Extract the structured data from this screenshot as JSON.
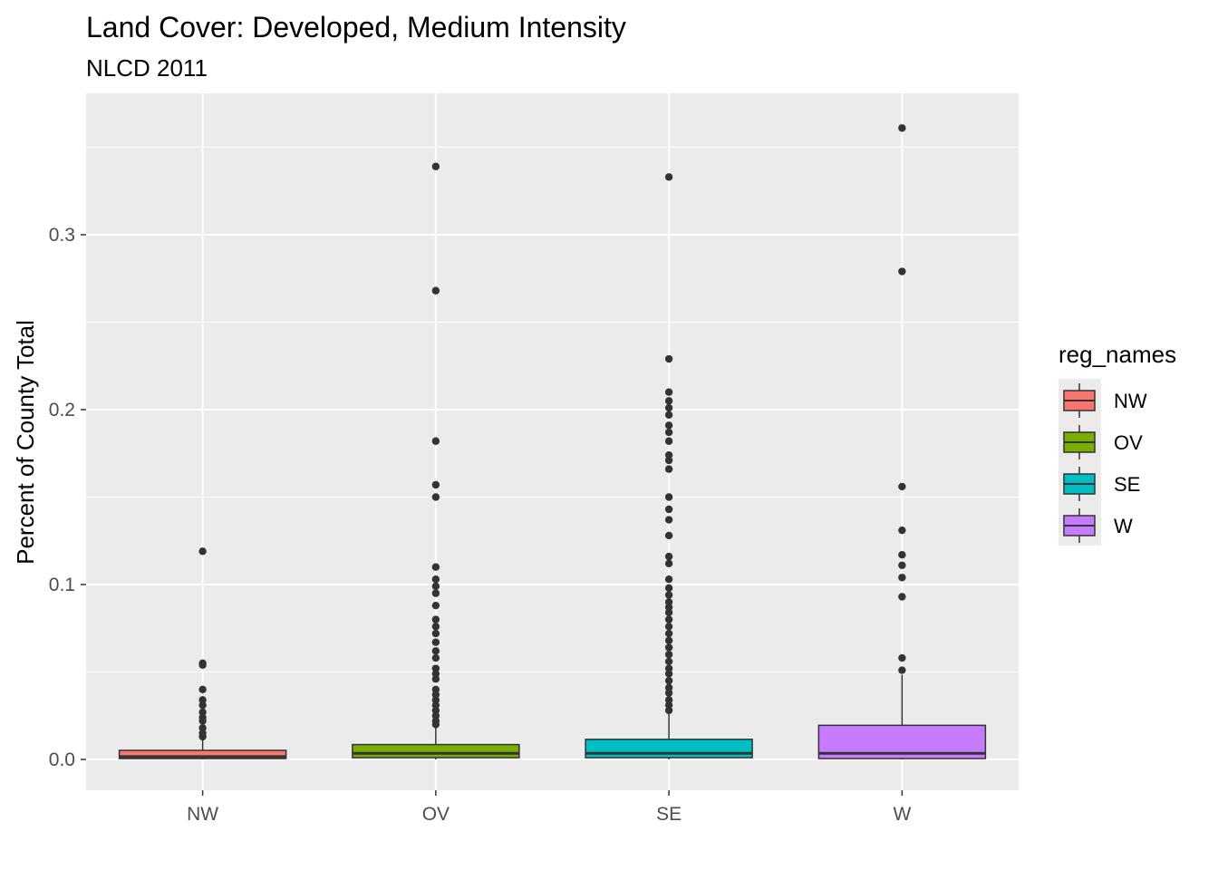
{
  "chart_data": {
    "type": "boxplot",
    "title": "Land Cover: Developed, Medium Intensity",
    "subtitle": "NLCD 2011",
    "xlabel": "",
    "ylabel": "Percent of County Total",
    "categories": [
      "NW",
      "OV",
      "SE",
      "W"
    ],
    "ylim": [
      -0.018,
      0.377
    ],
    "yticks": [
      0.0,
      0.1,
      0.2,
      0.3
    ],
    "ytick_labels": [
      "0.0",
      "0.1",
      "0.2",
      "0.3"
    ],
    "grid": true,
    "legend": {
      "title": "reg_names",
      "position": "right"
    },
    "series": [
      {
        "name": "NW",
        "color": "#F8766D",
        "q1": 0.0005,
        "median": 0.0016,
        "q3": 0.0052,
        "whisker_low": 0.0,
        "whisker_high": 0.0115,
        "outliers": [
          0.119,
          0.055,
          0.054,
          0.04,
          0.034,
          0.031,
          0.027,
          0.024,
          0.022,
          0.018,
          0.015,
          0.013
        ]
      },
      {
        "name": "OV",
        "color": "#7CAE00",
        "q1": 0.001,
        "median": 0.0035,
        "q3": 0.0085,
        "whisker_low": 0.0,
        "whisker_high": 0.0195,
        "outliers": [
          0.339,
          0.268,
          0.182,
          0.157,
          0.15,
          0.11,
          0.103,
          0.099,
          0.095,
          0.088,
          0.08,
          0.076,
          0.072,
          0.067,
          0.062,
          0.058,
          0.052,
          0.049,
          0.046,
          0.04,
          0.037,
          0.034,
          0.031,
          0.028,
          0.025,
          0.022,
          0.02
        ]
      },
      {
        "name": "SE",
        "color": "#00BFC4",
        "q1": 0.001,
        "median": 0.0035,
        "q3": 0.0115,
        "whisker_low": 0.0,
        "whisker_high": 0.0265,
        "outliers": [
          0.333,
          0.229,
          0.21,
          0.205,
          0.201,
          0.197,
          0.191,
          0.187,
          0.182,
          0.174,
          0.171,
          0.166,
          0.15,
          0.143,
          0.137,
          0.128,
          0.116,
          0.112,
          0.103,
          0.098,
          0.094,
          0.09,
          0.087,
          0.084,
          0.08,
          0.076,
          0.072,
          0.068,
          0.064,
          0.06,
          0.056,
          0.052,
          0.049,
          0.045,
          0.041,
          0.038,
          0.034,
          0.031,
          0.028
        ]
      },
      {
        "name": "W",
        "color": "#C77CFF",
        "q1": 0.0005,
        "median": 0.0035,
        "q3": 0.0195,
        "whisker_low": 0.0,
        "whisker_high": 0.0485,
        "outliers": [
          0.361,
          0.279,
          0.156,
          0.131,
          0.117,
          0.111,
          0.104,
          0.093,
          0.058,
          0.051
        ]
      }
    ]
  }
}
